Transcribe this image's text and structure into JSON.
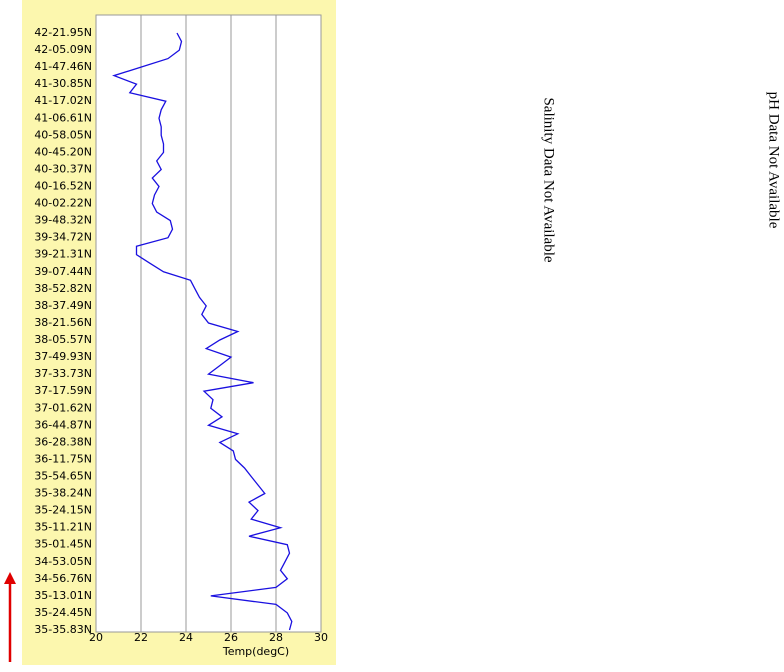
{
  "chart_data": {
    "type": "line",
    "orientation": "horizontal-values",
    "x_label": "Temp(degC)",
    "color": "#1a10e0",
    "xlim": [
      20,
      30
    ],
    "xticks": [
      20,
      22,
      24,
      26,
      28,
      30
    ],
    "grid": true,
    "categories": [
      "42-21.95N",
      null,
      "42-05.09N",
      null,
      "41-47.46N",
      null,
      "41-30.85N",
      null,
      "41-17.02N",
      null,
      "41-06.61N",
      null,
      "40-58.05N",
      null,
      "40-45.20N",
      null,
      "40-30.37N",
      null,
      "40-16.52N",
      null,
      "40-02.22N",
      null,
      "39-48.32N",
      null,
      "39-34.72N",
      null,
      "39-21.31N",
      null,
      "39-07.44N",
      null,
      "38-52.82N",
      null,
      "38-37.49N",
      null,
      "38-21.56N",
      null,
      "38-05.57N",
      null,
      "37-49.93N",
      null,
      "37-33.73N",
      null,
      "37-17.59N",
      null,
      "37-01.62N",
      null,
      "36-44.87N",
      null,
      "36-28.38N",
      null,
      "36-11.75N",
      null,
      "35-54.65N",
      null,
      "35-38.24N",
      null,
      "35-24.15N",
      null,
      "35-11.21N",
      null,
      "35-01.45N",
      null,
      "34-53.05N",
      null,
      "34-56.76N",
      null,
      "35-13.01N",
      null,
      "35-24.45N",
      null,
      "35-35.83N"
    ],
    "values": [
      23.6,
      23.8,
      23.7,
      23.2,
      22.0,
      20.8,
      21.8,
      21.5,
      23.1,
      22.9,
      22.8,
      22.9,
      22.9,
      23.0,
      23.0,
      22.7,
      22.9,
      22.5,
      22.8,
      22.6,
      22.5,
      22.7,
      23.3,
      23.4,
      23.2,
      21.8,
      21.8,
      22.4,
      23.0,
      24.2,
      24.4,
      24.6,
      24.9,
      24.7,
      25.0,
      26.3,
      25.5,
      24.9,
      26.0,
      25.5,
      25.0,
      27.0,
      24.8,
      25.2,
      25.1,
      25.6,
      25.0,
      26.3,
      25.5,
      26.1,
      26.2,
      26.6,
      26.9,
      27.2,
      27.5,
      26.8,
      27.2,
      26.9,
      28.2,
      26.8,
      28.5,
      28.6,
      28.4,
      28.2,
      28.5,
      28.0,
      25.1,
      28.0,
      28.5,
      28.7,
      28.6
    ]
  },
  "notes": [
    "Salinity Data Not Available",
    "pH Data Not Available"
  ]
}
